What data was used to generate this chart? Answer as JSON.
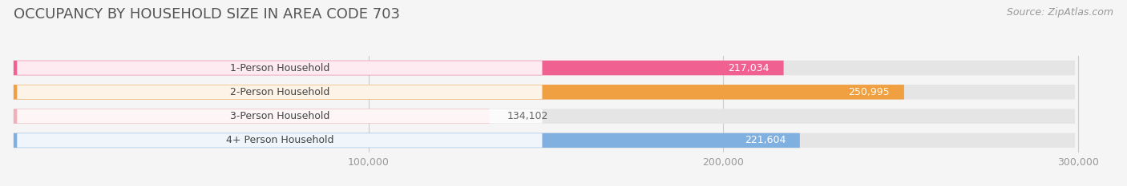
{
  "title": "OCCUPANCY BY HOUSEHOLD SIZE IN AREA CODE 703",
  "source": "Source: ZipAtlas.com",
  "categories": [
    "1-Person Household",
    "2-Person Household",
    "3-Person Household",
    "4+ Person Household"
  ],
  "values": [
    217034,
    250995,
    134102,
    221604
  ],
  "bar_colors": [
    "#f06090",
    "#f0a040",
    "#f0b0b8",
    "#80b0e0"
  ],
  "value_label_inside": [
    true,
    true,
    false,
    true
  ],
  "background_color": "#f5f5f5",
  "bar_bg_color": "#e5e5e5",
  "xlim": [
    0,
    310000
  ],
  "xticks": [
    100000,
    200000,
    300000
  ],
  "xtick_labels": [
    "100,000",
    "200,000",
    "300,000"
  ],
  "title_fontsize": 13,
  "label_fontsize": 9,
  "value_fontsize": 9,
  "source_fontsize": 9
}
